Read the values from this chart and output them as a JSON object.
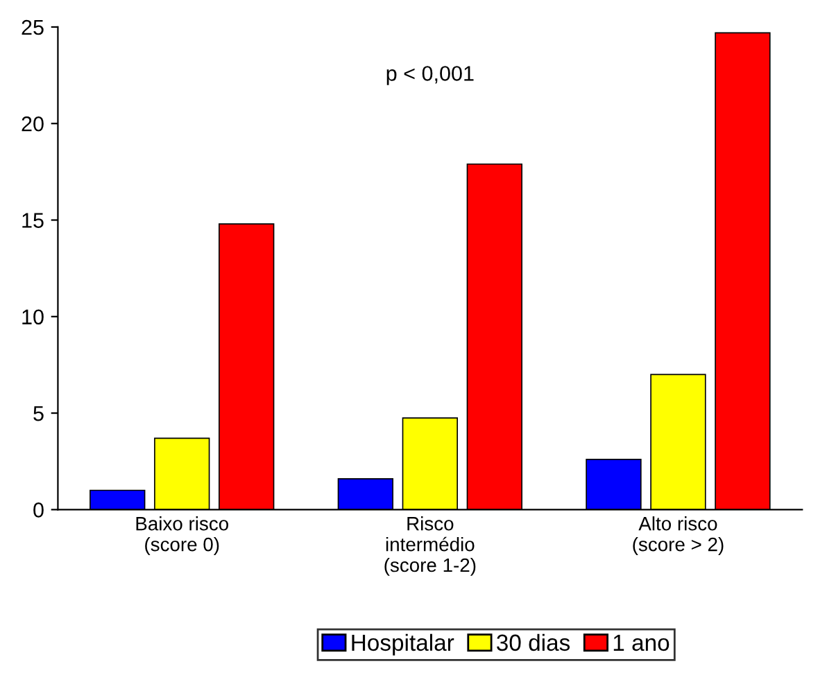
{
  "chart_data": {
    "type": "bar",
    "categories": [
      "Baixo risco\n(score 0)",
      "Risco\nintermédio\n(score 1-2)",
      "Alto risco\n(score > 2)"
    ],
    "series": [
      {
        "name": "Hospitalar",
        "color": "#0000ff",
        "values": [
          1.0,
          1.6,
          2.6
        ]
      },
      {
        "name": "30 dias",
        "color": "#ffff00",
        "values": [
          3.7,
          4.75,
          7.0
        ]
      },
      {
        "name": "1 ano",
        "color": "#ff0000",
        "values": [
          14.8,
          17.9,
          24.7
        ]
      }
    ],
    "ylim": [
      0,
      25
    ],
    "yticks": [
      0,
      5,
      10,
      15,
      20,
      25
    ],
    "grid": false,
    "legend": "bottom",
    "annotations": [
      "p < 0,001"
    ]
  }
}
